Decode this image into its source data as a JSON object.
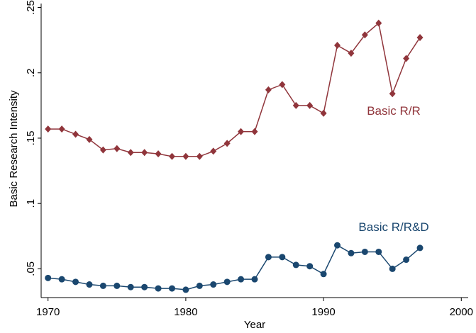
{
  "chart_data": {
    "type": "line",
    "x_label": "Year",
    "y_label": "Basic Research Intensity",
    "x": [
      1970,
      1971,
      1972,
      1973,
      1974,
      1975,
      1976,
      1977,
      1978,
      1979,
      1980,
      1981,
      1982,
      1983,
      1984,
      1985,
      1986,
      1987,
      1988,
      1989,
      1990,
      1991,
      1992,
      1993,
      1994,
      1995,
      1996,
      1997
    ],
    "series": [
      {
        "name": "Basic R/R",
        "color": "#90353b",
        "marker": "diamond",
        "values": [
          0.157,
          0.157,
          0.153,
          0.149,
          0.141,
          0.142,
          0.139,
          0.139,
          0.138,
          0.136,
          0.136,
          0.136,
          0.14,
          0.146,
          0.155,
          0.155,
          0.187,
          0.191,
          0.175,
          0.175,
          0.169,
          0.221,
          0.215,
          0.229,
          0.238,
          0.184,
          0.211,
          0.227
        ]
      },
      {
        "name": "Basic R/R&D",
        "color": "#1a476f",
        "marker": "circle",
        "values": [
          0.043,
          0.042,
          0.04,
          0.038,
          0.037,
          0.037,
          0.036,
          0.036,
          0.035,
          0.035,
          0.034,
          0.037,
          0.038,
          0.04,
          0.042,
          0.042,
          0.059,
          0.059,
          0.053,
          0.052,
          0.046,
          0.068,
          0.062,
          0.063,
          0.063,
          0.05,
          0.057,
          0.066
        ]
      }
    ],
    "xlim": [
      1969.5,
      2000.5
    ],
    "xticks": [
      1970,
      1980,
      1990,
      2000
    ],
    "ylim": [
      0.028,
      0.253
    ],
    "yticks": [
      {
        "value": 0.05,
        "label": ".05"
      },
      {
        "value": 0.1,
        "label": ".1"
      },
      {
        "value": 0.15,
        "label": ".15"
      },
      {
        "value": 0.2,
        "label": ".2"
      },
      {
        "value": 0.25,
        "label": ".25"
      }
    ],
    "grid": false
  }
}
